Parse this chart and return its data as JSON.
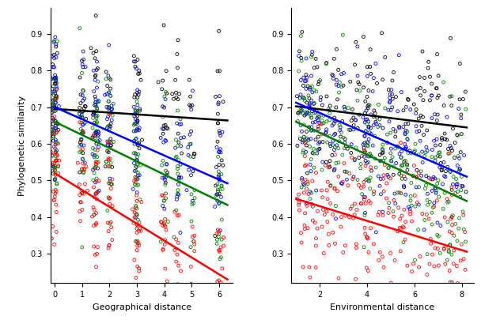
{
  "left_panel": {
    "xlabel": "Geographical distance",
    "ylabel": "Phylogenetic similarity",
    "xlim": [
      -0.15,
      6.5
    ],
    "ylim": [
      0.22,
      0.97
    ],
    "xticks": [
      0,
      1,
      2,
      3,
      4,
      5,
      6
    ],
    "yticks": [
      0.3,
      0.4,
      0.5,
      0.6,
      0.7,
      0.8,
      0.9
    ],
    "lines": {
      "black": [
        0.695,
        -0.005
      ],
      "blue": [
        0.7,
        -0.033
      ],
      "green": [
        0.66,
        -0.036
      ],
      "red": [
        0.52,
        -0.046
      ]
    },
    "x_centers": [
      0,
      0,
      0,
      0,
      1,
      1,
      1.5,
      1.5,
      2,
      2,
      2,
      3,
      3,
      3,
      3,
      4,
      4,
      4.5,
      5,
      5,
      6,
      6
    ],
    "n_points": 600
  },
  "right_panel": {
    "xlabel": "Environmental distance",
    "xlim": [
      0.8,
      8.5
    ],
    "ylim": [
      0.22,
      0.97
    ],
    "xticks": [
      2,
      4,
      6,
      8
    ],
    "yticks": [
      0.3,
      0.4,
      0.5,
      0.6,
      0.7,
      0.8,
      0.9
    ],
    "lines": {
      "black": [
        0.71,
        -0.008
      ],
      "blue": [
        0.74,
        -0.028
      ],
      "green": [
        0.69,
        -0.03
      ],
      "red": [
        0.47,
        -0.02
      ]
    },
    "n_points": 600
  },
  "colors": {
    "black": "#000000",
    "blue": "#0000ff",
    "green": "#008000",
    "red": "#ff0000"
  },
  "scatter_size": 8,
  "lw": 1.8
}
